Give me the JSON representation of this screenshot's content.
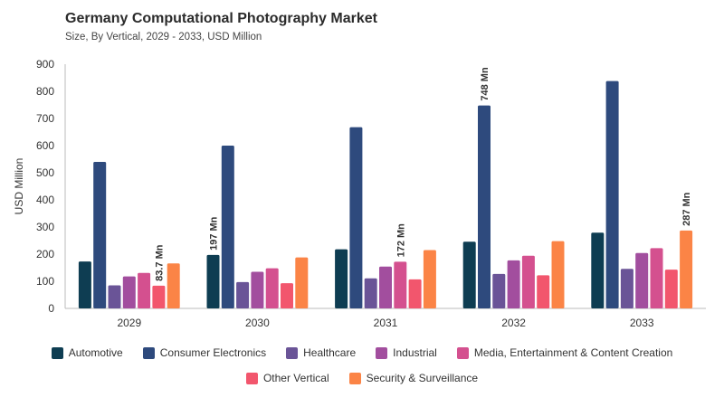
{
  "chart_data": {
    "type": "bar",
    "title": "Germany Computational Photography Market",
    "subtitle": "Size, By Vertical, 2029 - 2033, USD Million",
    "xlabel": "",
    "ylabel": "USD Million",
    "ylim": [
      0,
      900
    ],
    "yticks": [
      0,
      100,
      200,
      300,
      400,
      500,
      600,
      700,
      800,
      900
    ],
    "grid": false,
    "legend_position": "bottom",
    "categories": [
      "2029",
      "2030",
      "2031",
      "2032",
      "2033"
    ],
    "series": [
      {
        "name": "Automotive",
        "color": "#0e3d52",
        "values": [
          173,
          197,
          218,
          246,
          279
        ]
      },
      {
        "name": "Consumer Electronics",
        "color": "#2e4a7d",
        "values": [
          540,
          600,
          668,
          748,
          838
        ]
      },
      {
        "name": "Healthcare",
        "color": "#6a5497",
        "values": [
          85,
          97,
          111,
          127,
          146
        ]
      },
      {
        "name": "Industrial",
        "color": "#a24e9e",
        "values": [
          118,
          135,
          154,
          177,
          204
        ]
      },
      {
        "name": "Media, Entertainment & Content Creation",
        "color": "#d4508f",
        "values": [
          131,
          148,
          172,
          194,
          222
        ]
      },
      {
        "name": "Other Vertical",
        "color": "#f2566d",
        "values": [
          83.7,
          93,
          107,
          122,
          143
        ]
      },
      {
        "name": "Security & Surveillance",
        "color": "#fb8446",
        "values": [
          166,
          188,
          215,
          248,
          287
        ]
      }
    ],
    "annotations": [
      {
        "series": 5,
        "category": 0,
        "text": "83.7 Mn"
      },
      {
        "series": 0,
        "category": 1,
        "text": "197 Mn"
      },
      {
        "series": 4,
        "category": 2,
        "text": "172 Mn"
      },
      {
        "series": 1,
        "category": 3,
        "text": "748 Mn"
      },
      {
        "series": 6,
        "category": 4,
        "text": "287 Mn"
      }
    ]
  }
}
